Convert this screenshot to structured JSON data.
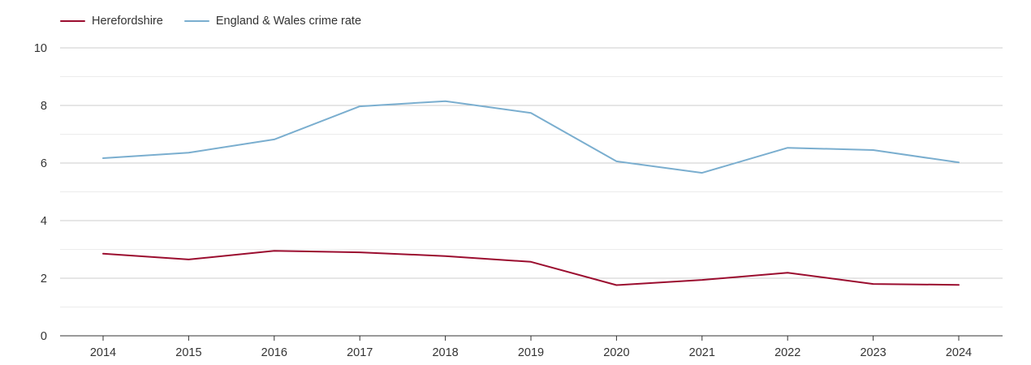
{
  "chart_data": {
    "type": "line",
    "title": "",
    "xlabel": "",
    "ylabel": "",
    "x": [
      "2014",
      "2015",
      "2016",
      "2017",
      "2018",
      "2019",
      "2020",
      "2021",
      "2022",
      "2023",
      "2024"
    ],
    "ylim": [
      0,
      10
    ],
    "yticks": [
      "0",
      "2",
      "4",
      "6",
      "8",
      "10"
    ],
    "grid": true,
    "legend_position": "top-left",
    "series": [
      {
        "name": "Herefordshire",
        "color": "#9b0d2f",
        "values": [
          2.85,
          2.65,
          2.95,
          2.9,
          2.77,
          2.57,
          1.76,
          1.94,
          2.19,
          1.8,
          1.77
        ]
      },
      {
        "name": "England & Wales crime rate",
        "color": "#7aaecf",
        "values": [
          6.17,
          6.36,
          6.82,
          7.97,
          8.15,
          7.74,
          6.06,
          5.66,
          6.53,
          6.45,
          6.02
        ]
      }
    ]
  }
}
